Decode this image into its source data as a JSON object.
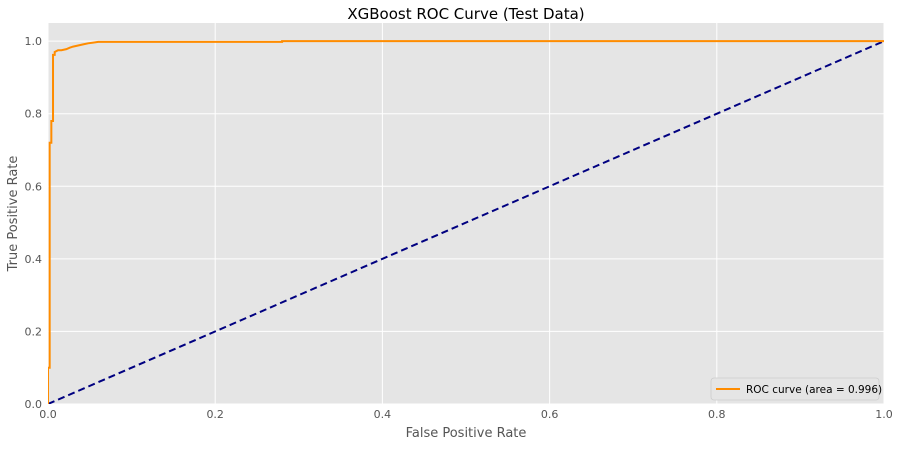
{
  "chart_data": {
    "type": "line",
    "title": "XGBoost ROC Curve (Test Data)",
    "xlabel": "False Positive Rate",
    "ylabel": "True Positive Rate",
    "xlim": [
      0.0,
      1.0
    ],
    "ylim": [
      0.0,
      1.05
    ],
    "x_ticks": [
      0.0,
      0.2,
      0.4,
      0.6,
      0.8,
      1.0
    ],
    "x_tick_labels": [
      "0.0",
      "0.2",
      "0.4",
      "0.6",
      "0.8",
      "1.0"
    ],
    "y_ticks": [
      0.0,
      0.2,
      0.4,
      0.6,
      0.8,
      1.0
    ],
    "y_tick_labels": [
      "0.0",
      "0.2",
      "0.4",
      "0.6",
      "0.8",
      "1.0"
    ],
    "grid": true,
    "background": "#e5e5e5",
    "legend_position": "lower-right",
    "series": [
      {
        "name": "ROC curve (area = 0.996)",
        "color": "#ff8c00",
        "style": "solid",
        "x": [
          0.0,
          0.0,
          0.002,
          0.002,
          0.004,
          0.004,
          0.006,
          0.006,
          0.008,
          0.008,
          0.012,
          0.016,
          0.022,
          0.026,
          0.03,
          0.036,
          0.042,
          0.048,
          0.054,
          0.06,
          0.1,
          0.28,
          0.28,
          1.0
        ],
        "y": [
          0.0,
          0.1,
          0.1,
          0.72,
          0.72,
          0.78,
          0.78,
          0.962,
          0.962,
          0.97,
          0.975,
          0.975,
          0.978,
          0.982,
          0.985,
          0.988,
          0.991,
          0.994,
          0.996,
          0.998,
          0.998,
          0.998,
          1.0,
          1.0
        ]
      },
      {
        "color": "#000080",
        "style": "dashed",
        "x": [
          0.0,
          1.0
        ],
        "y": [
          0.0,
          1.0
        ]
      }
    ]
  }
}
